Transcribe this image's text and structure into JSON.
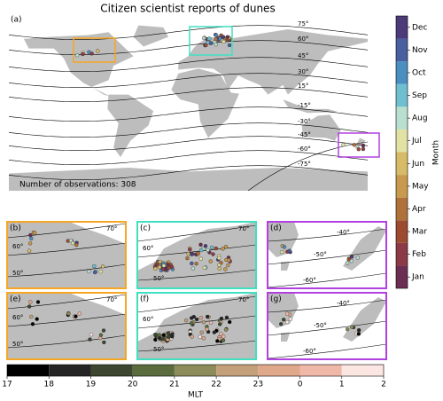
{
  "title": "Citizen scientist reports of dunes",
  "main_panel": {
    "label": "(a)",
    "contour_labels": [
      "75°",
      "60°",
      "45°",
      "30°",
      "15°",
      "-15°",
      "-30°",
      "-45°",
      "-60°",
      "-75°"
    ],
    "observation_count": "Number of observations: 308"
  },
  "subpanels": [
    {
      "label": "(b)",
      "frame_color": "#f5a623",
      "contour_labels": [
        "70°",
        "60°",
        "50°"
      ]
    },
    {
      "label": "(c)",
      "frame_color": "#3ee0c0",
      "contour_labels": [
        "70°",
        "60°",
        "50°"
      ]
    },
    {
      "label": "(d)",
      "frame_color": "#b040e0",
      "contour_labels": [
        "-40°",
        "-50°",
        "-60°"
      ]
    },
    {
      "label": "(e)",
      "frame_color": "#f5a623",
      "contour_labels": [
        "70°",
        "60°",
        "50°"
      ]
    },
    {
      "label": "(f)",
      "frame_color": "#3ee0c0",
      "contour_labels": [
        "70°",
        "60°",
        "50°"
      ]
    },
    {
      "label": "(g)",
      "frame_color": "#b040e0",
      "contour_labels": [
        "-40°",
        "-50°",
        "-60°"
      ]
    }
  ],
  "month_colorbar": {
    "label": "Month",
    "categories": [
      "Jan",
      "Feb",
      "Mar",
      "Apr",
      "May",
      "Jun",
      "Jul",
      "Aug",
      "Sep",
      "Oct",
      "Nov",
      "Dec"
    ],
    "colors": [
      "#6b2d52",
      "#8c3a48",
      "#9c4b30",
      "#b0723a",
      "#c89a4e",
      "#d7bb67",
      "#e2e2a4",
      "#b8dfcf",
      "#6fbfd0",
      "#4b8fc0",
      "#4a5f9f",
      "#4d3a78"
    ]
  },
  "mlt_colorbar": {
    "label": "MLT",
    "ticks": [
      "17",
      "18",
      "19",
      "20",
      "21",
      "22",
      "23",
      "0",
      "1",
      "2"
    ],
    "colors": [
      "#000000",
      "#252525",
      "#3c4630",
      "#5a6b3e",
      "#8c8b5a",
      "#c4a07a",
      "#e0a88a",
      "#f0b8a8",
      "#fbe6e2"
    ]
  }
}
